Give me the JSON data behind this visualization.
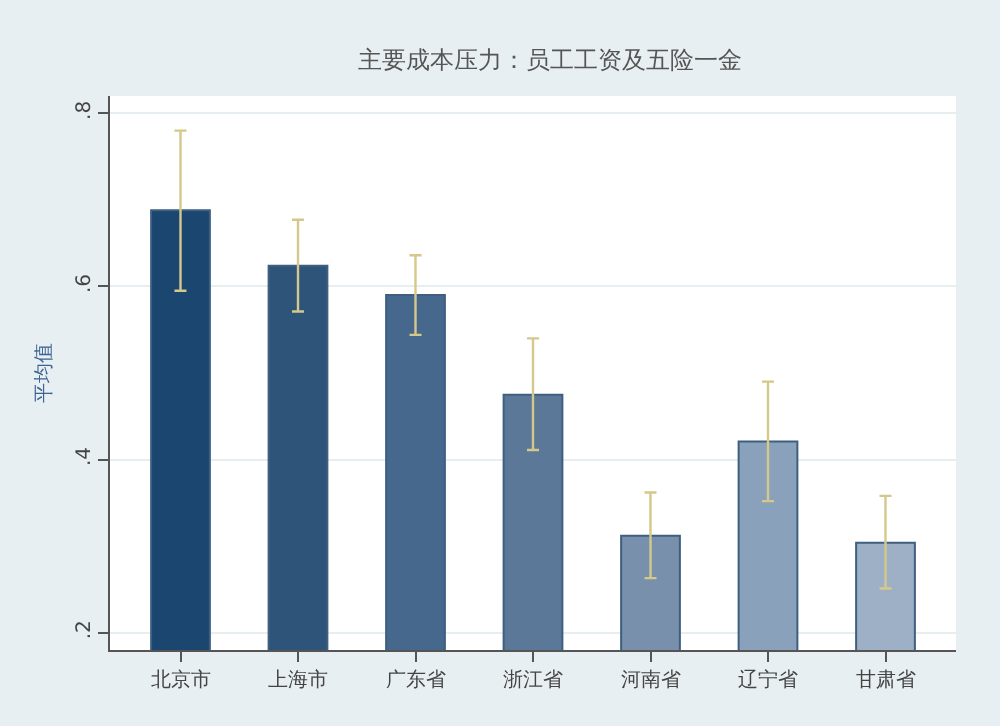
{
  "chart_data": {
    "type": "bar",
    "title": "主要成本压力：员工工资及五险一金",
    "ylabel": "平均值",
    "categories": [
      "北京市",
      "上海市",
      "广东省",
      "浙江省",
      "河南省",
      "辽宁省",
      "甘肃省"
    ],
    "values": [
      0.688,
      0.624,
      0.59,
      0.475,
      0.312,
      0.421,
      0.304
    ],
    "colors": [
      "#1b4670",
      "#2f5479",
      "#46688c",
      "#5b7898",
      "#7890ab",
      "#8aa1bb",
      "#9db0c6"
    ],
    "errors": [
      [
        0.595,
        0.78
      ],
      [
        0.571,
        0.677
      ],
      [
        0.544,
        0.636
      ],
      [
        0.411,
        0.54
      ],
      [
        0.263,
        0.362
      ],
      [
        0.352,
        0.49
      ],
      [
        0.251,
        0.358
      ]
    ],
    "ylim": [
      0.18,
      0.82
    ],
    "yticks": [
      {
        "value": 0.2,
        "label": ".2"
      },
      {
        "value": 0.4,
        "label": ".4"
      },
      {
        "value": 0.6,
        "label": ".6"
      },
      {
        "value": 0.8,
        "label": ".8"
      }
    ],
    "grid": "y",
    "legend": false
  }
}
